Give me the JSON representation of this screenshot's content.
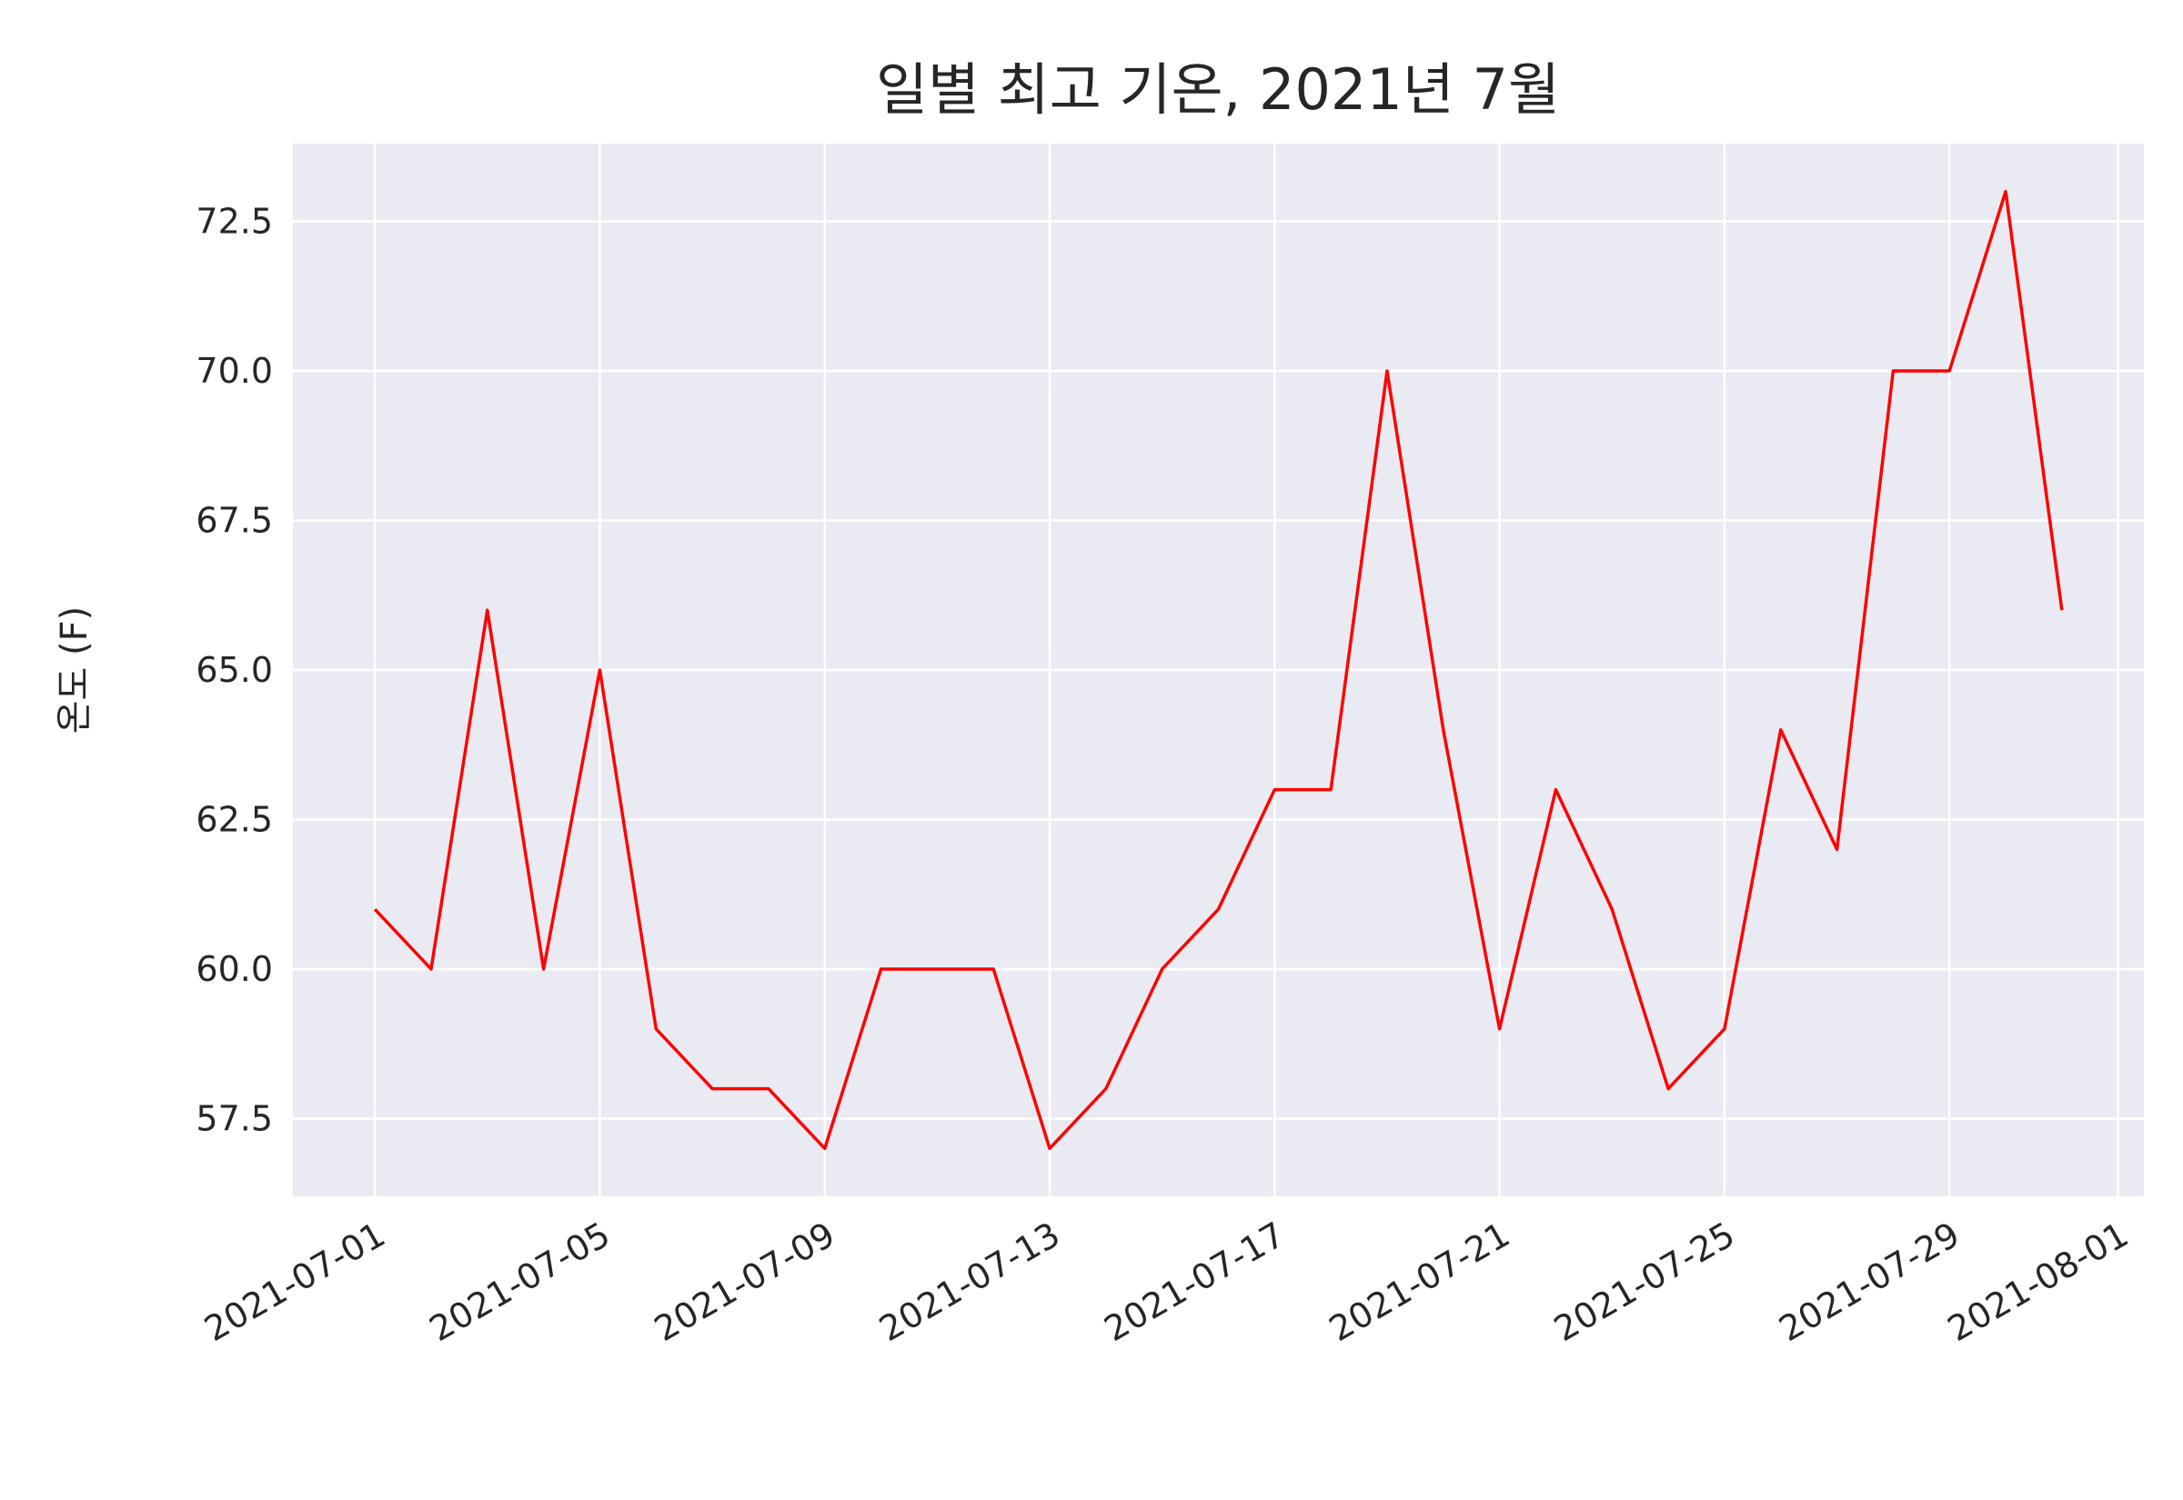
{
  "chart_data": {
    "type": "line",
    "title": "일별 최고 기온, 2021년 7월",
    "xlabel": "",
    "ylabel": "온도 (F)",
    "x": [
      "2021-07-01",
      "2021-07-02",
      "2021-07-03",
      "2021-07-04",
      "2021-07-05",
      "2021-07-06",
      "2021-07-07",
      "2021-07-08",
      "2021-07-09",
      "2021-07-10",
      "2021-07-11",
      "2021-07-12",
      "2021-07-13",
      "2021-07-14",
      "2021-07-15",
      "2021-07-16",
      "2021-07-17",
      "2021-07-18",
      "2021-07-19",
      "2021-07-20",
      "2021-07-21",
      "2021-07-22",
      "2021-07-23",
      "2021-07-24",
      "2021-07-25",
      "2021-07-26",
      "2021-07-27",
      "2021-07-28",
      "2021-07-29",
      "2021-07-30",
      "2021-07-31"
    ],
    "series": [
      {
        "color": "#ff0000",
        "values": [
          61,
          60,
          66,
          60,
          65,
          59,
          58,
          58,
          57,
          60,
          60,
          60,
          57,
          58,
          60,
          61,
          63,
          63,
          70,
          64,
          59,
          63,
          61,
          58,
          59,
          64,
          62,
          70,
          70,
          73,
          66
        ]
      }
    ],
    "xlim": [
      "2021-06-29 13:00",
      "2021-08-01 11:00"
    ],
    "ylim": [
      56.2,
      73.8
    ],
    "x_ticks": [
      "2021-07-01",
      "2021-07-05",
      "2021-07-09",
      "2021-07-13",
      "2021-07-17",
      "2021-07-21",
      "2021-07-25",
      "2021-07-29",
      "2021-08-01"
    ],
    "y_ticks": [
      57.5,
      60.0,
      62.5,
      65.0,
      67.5,
      70.0,
      72.5
    ],
    "y_tick_labels": [
      "57.5",
      "60.0",
      "62.5",
      "65.0",
      "67.5",
      "70.0",
      "72.5"
    ],
    "grid": true,
    "legend": "none",
    "background_color": "#eaeaf2",
    "grid_color": "#ffffff"
  }
}
